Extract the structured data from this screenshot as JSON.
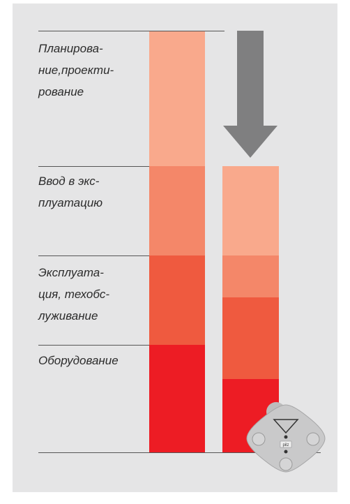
{
  "labels": [
    {
      "lines": [
        "Планирова-",
        "ние,проекти-",
        "рование"
      ]
    },
    {
      "lines": [
        "Ввод в экс-",
        "плуатацию"
      ]
    },
    {
      "lines": [
        "Эксплуата-",
        "ция, техобс-",
        "луживание"
      ]
    },
    {
      "lines": [
        "Оборудование"
      ]
    }
  ],
  "device": {
    "label": "pilz"
  }
}
